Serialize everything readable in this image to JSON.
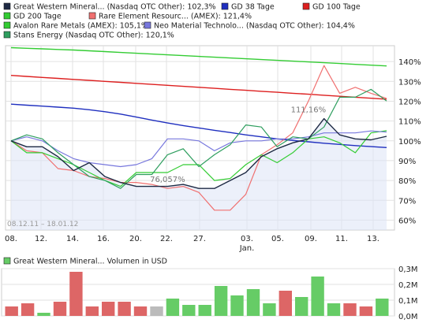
{
  "legend": {
    "items": [
      {
        "label": "Great Western Mineral... (Nasdaq OTC Other): 102,3%",
        "color": "#1e2a44"
      },
      {
        "label": "GD 38 Tage",
        "color": "#1f2fbf"
      },
      {
        "label": "GD 100 Tage",
        "color": "#dd1f1f"
      },
      {
        "label": "GD 200 Tage",
        "color": "#33cc33"
      },
      {
        "label": "Rare Element Resourc... (AMEX): 121,4%",
        "color": "#f07070"
      },
      {
        "label": "Avalon Rare Metals (AMEX): 105,1%",
        "color": "#33cc33"
      },
      {
        "label": "Neo Material Technolo... (Nasdaq OTC Other): 104,4%",
        "color": "#7777dd"
      },
      {
        "label": "Stans Energy (Nasdaq OTC Other): 120,1%",
        "color": "#2e9e5e"
      }
    ]
  },
  "chart_data": [
    {
      "type": "line",
      "date_range_label": "08.12.11 – 18.01.12",
      "x_tick_labels": [
        "08.",
        "12.",
        "14.",
        "16.",
        "20.",
        "22.",
        "27.",
        "03.",
        "05.",
        "09.",
        "11.",
        "13."
      ],
      "x_sub_label": "Jan.",
      "y_tick_labels": [
        "60%",
        "70%",
        "80%",
        "90%",
        "100%",
        "110%",
        "120%",
        "130%",
        "140%"
      ],
      "ylim": [
        55,
        148
      ],
      "grid": true,
      "annotations": [
        {
          "text": "111,16%",
          "x": 19,
          "y": 111.2
        },
        {
          "text": "76,057%",
          "x": 10,
          "y": 76.1
        }
      ],
      "series": [
        {
          "name": "Great Western Mineral... (Nasdaq OTC Other): 102,3%",
          "color": "#1e2a44",
          "width": 1.4,
          "values": [
            100,
            97,
            97,
            92,
            85,
            89,
            82,
            79,
            77,
            77,
            77,
            78,
            76,
            76,
            80,
            84,
            92,
            96,
            99,
            101,
            111.2,
            103,
            101,
            100.5,
            102.3
          ]
        },
        {
          "name": "GD 38 Tage",
          "color": "#1f2fbf",
          "width": 1.4,
          "values": [
            118.5,
            118,
            117.5,
            117,
            116.5,
            115.7,
            114.7,
            113.5,
            112,
            110.5,
            109,
            107.7,
            106.5,
            105.3,
            104.2,
            103,
            102,
            101,
            100.2,
            99.5,
            98.8,
            98.2,
            97.6,
            97.1,
            96.6
          ]
        },
        {
          "name": "GD 100 Tage",
          "color": "#dd1f1f",
          "width": 1.4,
          "values": [
            133,
            132.5,
            132,
            131.5,
            131,
            130.5,
            130,
            129.5,
            129,
            128.5,
            128,
            127.5,
            127,
            126.5,
            126,
            125.5,
            125,
            124.5,
            124,
            123.5,
            123,
            122.5,
            122,
            121.5,
            121
          ]
        },
        {
          "name": "GD 200 Tage",
          "color": "#33cc33",
          "width": 1.4,
          "values": [
            147,
            146.7,
            146.4,
            146.1,
            145.8,
            145.4,
            145,
            144.6,
            144.2,
            143.8,
            143.4,
            143,
            142.6,
            142.2,
            141.8,
            141.4,
            141,
            140.6,
            140.2,
            139.8,
            139.4,
            139,
            138.6,
            138.2,
            137.8
          ]
        },
        {
          "name": "Rare Element Resourc... (AMEX): 121,4%",
          "color": "#f07070",
          "width": 1.2,
          "values": [
            100,
            95,
            94,
            86,
            85,
            82,
            81,
            79,
            79,
            78,
            76,
            77,
            74,
            65,
            65,
            73,
            93,
            98,
            104,
            120,
            138,
            124,
            127,
            124,
            121.4
          ]
        },
        {
          "name": "Avalon Rare Metals (AMEX): 105,1%",
          "color": "#33cc33",
          "width": 1.2,
          "values": [
            100,
            94,
            94,
            91,
            88,
            84,
            80,
            77,
            84,
            84,
            84,
            88,
            88,
            80,
            81,
            88,
            93,
            89,
            94,
            101,
            102,
            99,
            94,
            104,
            105.1
          ]
        },
        {
          "name": "Neo Material Technolo... (Nasdaq OTC Other): 104,4%",
          "color": "#7777dd",
          "width": 1.2,
          "values": [
            100,
            102,
            100,
            95,
            91,
            89,
            88,
            87,
            88,
            91,
            101,
            101,
            100,
            95,
            99,
            100,
            100,
            101,
            101,
            102,
            104,
            104,
            104,
            105,
            104.4
          ]
        },
        {
          "name": "Stans Energy (Nasdaq OTC Other): 120,1%",
          "color": "#2e9e5e",
          "width": 1.2,
          "values": [
            100,
            103,
            101,
            94,
            88,
            82,
            80,
            76,
            83,
            83,
            93,
            96,
            87,
            93,
            98,
            108,
            107,
            97,
            102,
            101,
            107,
            122,
            122,
            126,
            120.1
          ]
        }
      ]
    },
    {
      "type": "bar",
      "legend_label": "Great Western Mineral... Volumen in USD",
      "legend_color": "#66cc66",
      "y_tick_labels": [
        "0,0M",
        "0,1M",
        "0,2M",
        "0,3M"
      ],
      "ylim": [
        0,
        0.3
      ],
      "bars": [
        {
          "value": 0.06,
          "trend": "down"
        },
        {
          "value": 0.08,
          "trend": "down"
        },
        {
          "value": 0.02,
          "trend": "up"
        },
        {
          "value": 0.09,
          "trend": "down"
        },
        {
          "value": 0.28,
          "trend": "down"
        },
        {
          "value": 0.06,
          "trend": "down"
        },
        {
          "value": 0.09,
          "trend": "down"
        },
        {
          "value": 0.09,
          "trend": "down"
        },
        {
          "value": 0.06,
          "trend": "down"
        },
        {
          "value": 0.06,
          "trend": "flat"
        },
        {
          "value": 0.11,
          "trend": "up"
        },
        {
          "value": 0.07,
          "trend": "up"
        },
        {
          "value": 0.07,
          "trend": "up"
        },
        {
          "value": 0.19,
          "trend": "up"
        },
        {
          "value": 0.13,
          "trend": "up"
        },
        {
          "value": 0.17,
          "trend": "up"
        },
        {
          "value": 0.08,
          "trend": "up"
        },
        {
          "value": 0.16,
          "trend": "down"
        },
        {
          "value": 0.12,
          "trend": "up"
        },
        {
          "value": 0.25,
          "trend": "up"
        },
        {
          "value": 0.08,
          "trend": "up"
        },
        {
          "value": 0.08,
          "trend": "down"
        },
        {
          "value": 0.06,
          "trend": "down"
        },
        {
          "value": 0.11,
          "trend": "up"
        }
      ],
      "colors": {
        "up": "#66cc66",
        "down": "#dd6666",
        "flat": "#bbbbbb"
      }
    }
  ]
}
